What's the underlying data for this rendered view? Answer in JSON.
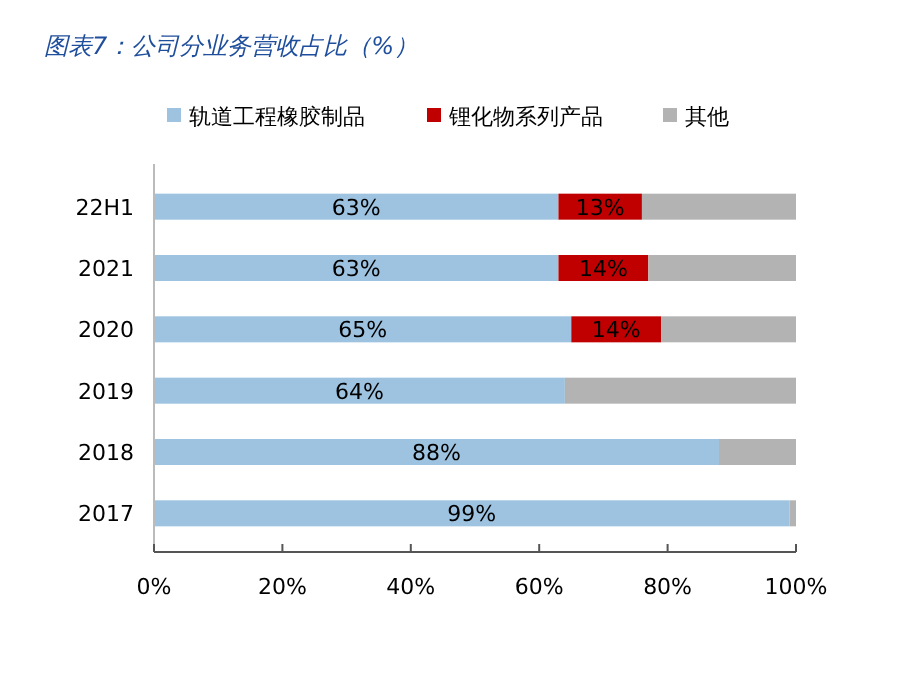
{
  "chart_data": {
    "type": "bar",
    "orientation": "horizontal",
    "stacked": true,
    "title": "图表7：公司分业务营收占比（%）",
    "categories": [
      "22H1",
      "2021",
      "2020",
      "2019",
      "2018",
      "2017"
    ],
    "series": [
      {
        "name": "轨道工程橡胶制品",
        "color": "#9dc3e0",
        "values": [
          63,
          63,
          65,
          64,
          88,
          99
        ],
        "value_labels": [
          "63%",
          "63%",
          "65%",
          "64%",
          "88%",
          "99%"
        ]
      },
      {
        "name": "锂化物系列产品",
        "color": "#c00000",
        "values": [
          13,
          14,
          14,
          null,
          null,
          null
        ],
        "value_labels": [
          "13%",
          "14%",
          "14%",
          null,
          null,
          null
        ]
      },
      {
        "name": "其他",
        "color": "#b3b3b3",
        "values": [
          24,
          23,
          21,
          36,
          12,
          1
        ]
      }
    ],
    "xlim": [
      0,
      100
    ],
    "xticks": [
      {
        "value": 0,
        "label": "0%"
      },
      {
        "value": 20,
        "label": "20%"
      },
      {
        "value": 40,
        "label": "40%"
      },
      {
        "value": 60,
        "label": "60%"
      },
      {
        "value": 80,
        "label": "80%"
      },
      {
        "value": 100,
        "label": "100%"
      }
    ],
    "legend": "top",
    "grid": false
  }
}
